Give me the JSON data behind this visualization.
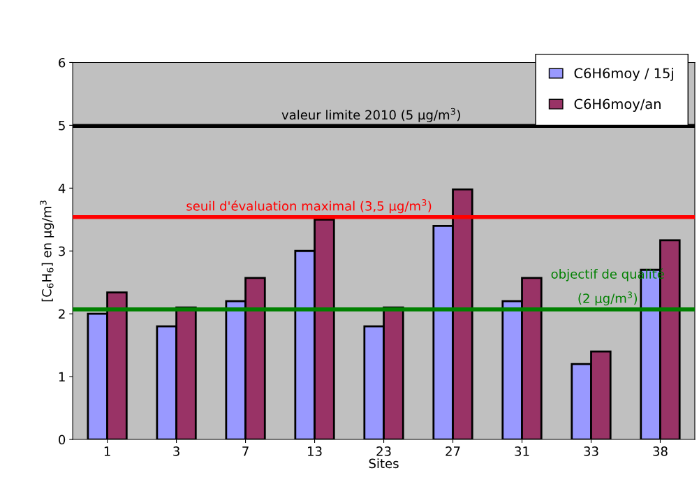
{
  "chart_data": {
    "type": "bar",
    "categories": [
      "1",
      "3",
      "7",
      "13",
      "23",
      "27",
      "31",
      "33",
      "38"
    ],
    "series": [
      {
        "name": "C6H6moy / 15j",
        "color": "#9999ff",
        "values": [
          2.0,
          1.8,
          2.2,
          3.0,
          1.8,
          3.4,
          2.2,
          1.2,
          2.7
        ]
      },
      {
        "name": "C6H6moy/an",
        "color": "#993366",
        "values": [
          2.34,
          2.1,
          2.57,
          3.5,
          2.1,
          3.98,
          2.57,
          1.4,
          3.17
        ]
      }
    ],
    "xlabel": "Sites",
    "ylabel": "[C$_{6}$H$_{6}$] en μg/m$^{3}$",
    "ylim": [
      0,
      6
    ],
    "yticks": [
      0,
      1,
      2,
      3,
      4,
      5,
      6
    ],
    "ref_lines": [
      {
        "axis": "y",
        "value": 4.99,
        "label": "valeur limite 2010 (5 μg/m$^{3}$)",
        "color": "#000000"
      },
      {
        "axis": "y",
        "value": 3.54,
        "label": "seuil d'évaluation maximal (3,5 μg/m$^{3}$)",
        "color": "#ff0000"
      },
      {
        "axis": "y",
        "value": 2.07,
        "label": "objectif de qualité\n(2 μg/m$^{3}$)",
        "color": "#008000"
      }
    ],
    "grid": false,
    "legend": "top right"
  }
}
